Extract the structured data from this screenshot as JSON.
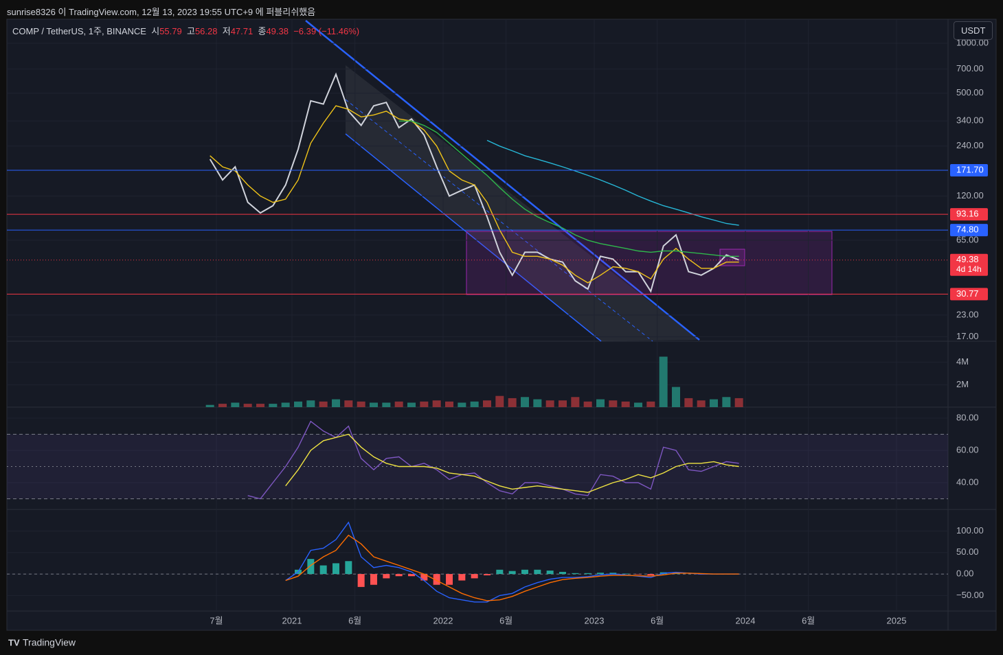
{
  "header": {
    "published": "sunrise8326 이 TradingView.com, 12월 13, 2023 19:55 UTC+9 에 퍼블리쉬했음",
    "button": "USDT",
    "brand": "TradingView"
  },
  "legend": {
    "symbol": "COMP / TetherUS, 1주, BINANCE",
    "open_label": "시",
    "open": 55.79,
    "high_label": "고",
    "high": 56.28,
    "low_label": "저",
    "low": 47.71,
    "close_label": "종",
    "close": 49.38,
    "change": "−6.39 (−11.46%)"
  },
  "chart_data": [
    {
      "type": "line",
      "log_scale": true,
      "ylim": [
        16,
        1370
      ],
      "yticks": [
        {
          "value": 1000,
          "label": "1000.00"
        },
        {
          "value": 700,
          "label": "700.00"
        },
        {
          "value": 500,
          "label": "500.00"
        },
        {
          "value": 340,
          "label": "340.00"
        },
        {
          "value": 240,
          "label": "240.00"
        },
        {
          "value": 120,
          "label": "120.00"
        },
        {
          "value": 65,
          "label": "65.00"
        },
        {
          "value": 23,
          "label": "23.00"
        },
        {
          "value": 17,
          "label": "17.00"
        }
      ],
      "xticks": [
        {
          "value": "2020-07",
          "label": "7월"
        },
        {
          "value": "2021-01",
          "label": "2021"
        },
        {
          "value": "2021-06",
          "label": "6월"
        },
        {
          "value": "2022-01",
          "label": "2022"
        },
        {
          "value": "2022-06",
          "label": "6월"
        },
        {
          "value": "2023-01",
          "label": "2023"
        },
        {
          "value": "2023-06",
          "label": "6월"
        },
        {
          "value": "2024-01",
          "label": "2024"
        },
        {
          "value": "2024-06",
          "label": "6월"
        },
        {
          "value": "2025-01",
          "label": "2025"
        }
      ],
      "x": [
        "2020-06",
        "2020-07",
        "2020-08",
        "2020-09",
        "2020-10",
        "2020-11",
        "2020-12",
        "2021-01",
        "2021-02",
        "2021-03",
        "2021-04",
        "2021-05",
        "2021-06",
        "2021-07",
        "2021-08",
        "2021-09",
        "2021-10",
        "2021-11",
        "2021-12",
        "2022-01",
        "2022-02",
        "2022-03",
        "2022-04",
        "2022-05",
        "2022-06",
        "2022-07",
        "2022-08",
        "2022-09",
        "2022-10",
        "2022-11",
        "2022-12",
        "2023-01",
        "2023-02",
        "2023-03",
        "2023-04",
        "2023-05",
        "2023-06",
        "2023-07",
        "2023-08",
        "2023-09",
        "2023-10",
        "2023-11",
        "2023-12"
      ],
      "series": [
        {
          "color": "#d1d4dc",
          "values": [
            200,
            150,
            180,
            110,
            95,
            105,
            140,
            230,
            450,
            430,
            650,
            390,
            320,
            420,
            440,
            310,
            350,
            280,
            180,
            120,
            130,
            140,
            90,
            55,
            40,
            55,
            55,
            50,
            48,
            37,
            33,
            52,
            50,
            42,
            42,
            32,
            60,
            70,
            42,
            40,
            44,
            53,
            49.38
          ]
        },
        {
          "color": "#f0c419",
          "values": [
            210,
            180,
            170,
            140,
            120,
            110,
            115,
            150,
            250,
            330,
            420,
            400,
            360,
            370,
            390,
            350,
            340,
            300,
            240,
            170,
            150,
            140,
            110,
            75,
            55,
            52,
            52,
            50,
            46,
            40,
            36,
            40,
            45,
            44,
            42,
            38,
            50,
            58,
            50,
            44,
            44,
            48,
            48
          ]
        },
        {
          "color": "#2eb84b",
          "values": [
            null,
            null,
            null,
            null,
            null,
            null,
            null,
            null,
            null,
            null,
            null,
            null,
            null,
            null,
            null,
            340,
            340,
            320,
            290,
            250,
            215,
            185,
            160,
            135,
            115,
            100,
            90,
            83,
            77,
            70,
            65,
            62,
            60,
            58,
            56,
            55,
            56,
            56,
            55,
            54,
            53,
            52,
            52
          ]
        },
        {
          "color": "#27b8d8",
          "values": [
            null,
            null,
            null,
            null,
            null,
            null,
            null,
            null,
            null,
            null,
            null,
            null,
            null,
            null,
            null,
            null,
            null,
            null,
            null,
            null,
            null,
            null,
            260,
            240,
            225,
            210,
            200,
            190,
            180,
            170,
            160,
            150,
            140,
            130,
            120,
            112,
            105,
            100,
            95,
            90,
            86,
            82,
            80
          ]
        }
      ],
      "levels": [
        {
          "value": 171.7,
          "label": "171.70",
          "color": "#2962ff"
        },
        {
          "value": 93.16,
          "label": "93.16",
          "color": "#f23645"
        },
        {
          "value": 74.8,
          "label": "74.80",
          "color": "#2962ff"
        },
        {
          "value": 30.77,
          "label": "30.77",
          "color": "#f23645"
        }
      ],
      "last": {
        "value": 49.38,
        "label": "49.38",
        "countdown": "4d 14h",
        "color": "#f23645"
      }
    },
    {
      "type": "bar",
      "ylim": [
        0,
        5875000
      ],
      "yticks": [
        {
          "value": 4000000,
          "label": "4M"
        },
        {
          "value": 2000000,
          "label": "2M"
        }
      ],
      "up_color": "#22796f",
      "down_color": "#8c3036",
      "values": [
        200000,
        300000,
        400000,
        300000,
        300000,
        300000,
        400000,
        500000,
        600000,
        500000,
        700000,
        600000,
        500000,
        400000,
        400000,
        500000,
        400000,
        500000,
        600000,
        500000,
        400000,
        500000,
        600000,
        1000000,
        800000,
        900000,
        700000,
        600000,
        600000,
        900000,
        500000,
        700000,
        600000,
        500000,
        400000,
        500000,
        4500000,
        1800000,
        800000,
        600000,
        700000,
        900000,
        800000
      ]
    },
    {
      "type": "line",
      "ylim": [
        23.4,
        86.8
      ],
      "yticks": [
        {
          "value": 80,
          "label": "80.00"
        },
        {
          "value": 60,
          "label": "60.00"
        },
        {
          "value": 40,
          "label": "40.00"
        }
      ],
      "bands": [
        30,
        50,
        70
      ],
      "series": [
        {
          "color": "#7e57c2",
          "values": [
            null,
            null,
            null,
            32,
            30,
            40,
            50,
            62,
            78,
            72,
            68,
            75,
            55,
            48,
            55,
            56,
            50,
            52,
            48,
            42,
            45,
            46,
            40,
            35,
            33,
            40,
            40,
            38,
            36,
            33,
            32,
            45,
            44,
            40,
            40,
            36,
            62,
            60,
            48,
            47,
            50,
            53,
            52
          ]
        },
        {
          "color": "#f0e442",
          "values": [
            null,
            null,
            null,
            null,
            null,
            null,
            38,
            48,
            60,
            66,
            68,
            70,
            62,
            56,
            52,
            50,
            50,
            50,
            49,
            46,
            45,
            44,
            41,
            38,
            36,
            37,
            38,
            37,
            36,
            35,
            34,
            37,
            40,
            42,
            45,
            43,
            46,
            50,
            52,
            52,
            53,
            51,
            50
          ]
        }
      ]
    },
    {
      "type": "line",
      "ylim": [
        -86,
        150
      ],
      "yticks": [
        {
          "value": 100,
          "label": "100.00"
        },
        {
          "value": 50,
          "label": "50.00"
        },
        {
          "value": 0,
          "label": "0.00"
        },
        {
          "value": -50,
          "label": "−50.00"
        }
      ],
      "histogram": {
        "up_color": "#26a69a",
        "down_color": "#ff5252",
        "values": [
          null,
          null,
          null,
          null,
          null,
          null,
          0,
          10,
          35,
          20,
          25,
          30,
          -30,
          -25,
          -10,
          -5,
          -5,
          -15,
          -25,
          -25,
          -15,
          -10,
          -3,
          10,
          7,
          10,
          10,
          8,
          5,
          2,
          2,
          3,
          3,
          1,
          -1,
          -3,
          4,
          2,
          0,
          -1,
          0,
          0,
          0
        ]
      },
      "series": [
        {
          "color": "#2962ff",
          "values": [
            null,
            null,
            null,
            null,
            null,
            null,
            -15,
            5,
            55,
            60,
            80,
            120,
            40,
            15,
            20,
            15,
            5,
            -15,
            -40,
            -55,
            -60,
            -65,
            -65,
            -50,
            -45,
            -30,
            -20,
            -12,
            -8,
            -8,
            -6,
            -2,
            0,
            -2,
            -5,
            -8,
            2,
            4,
            2,
            0,
            0,
            0,
            0
          ]
        },
        {
          "color": "#ff6d00",
          "values": [
            null,
            null,
            null,
            null,
            null,
            null,
            -15,
            -5,
            20,
            40,
            55,
            90,
            70,
            40,
            30,
            20,
            10,
            0,
            -15,
            -30,
            -45,
            -55,
            -62,
            -60,
            -52,
            -40,
            -30,
            -20,
            -13,
            -10,
            -8,
            -5,
            -3,
            -3,
            -4,
            -5,
            -2,
            2,
            2,
            1,
            0,
            0,
            0
          ]
        }
      ]
    }
  ]
}
